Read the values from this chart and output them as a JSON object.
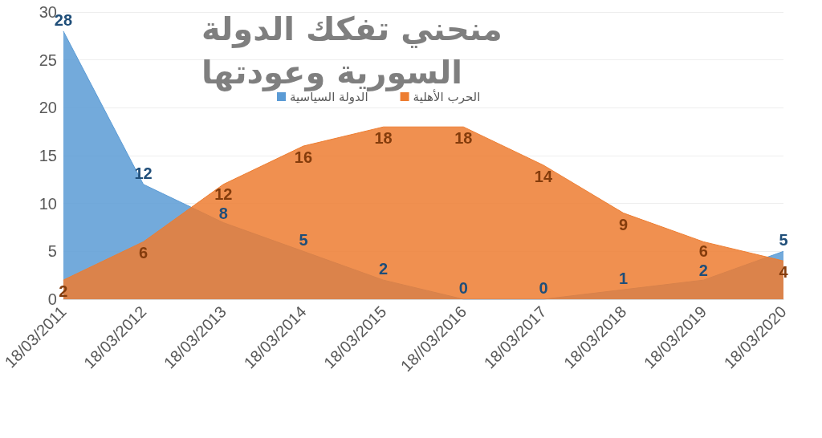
{
  "chart_data": {
    "type": "area",
    "title": "منحني تفكك الدولة السورية وعودتها",
    "categories": [
      "18/03/2011",
      "18/03/2012",
      "18/03/2013",
      "18/03/2014",
      "18/03/2015",
      "18//03/2016",
      "18/03/2017",
      "18/03/2018",
      "18/03/2019",
      "18/03/2020"
    ],
    "series": [
      {
        "name": "الدولة السياسية",
        "color": "#5b9bd5",
        "values": [
          28,
          12,
          8,
          5,
          2,
          0,
          0,
          1,
          2,
          5
        ]
      },
      {
        "name": "الحرب الأهلية",
        "color": "#ed7d31",
        "values": [
          2,
          6,
          12,
          16,
          18,
          18,
          14,
          9,
          6,
          4
        ]
      }
    ],
    "ylim": [
      0,
      30
    ],
    "yticks": [
      0,
      5,
      10,
      15,
      20,
      25,
      30
    ],
    "grid": "y",
    "legend": "top",
    "data_labels": true,
    "marker": "none"
  }
}
